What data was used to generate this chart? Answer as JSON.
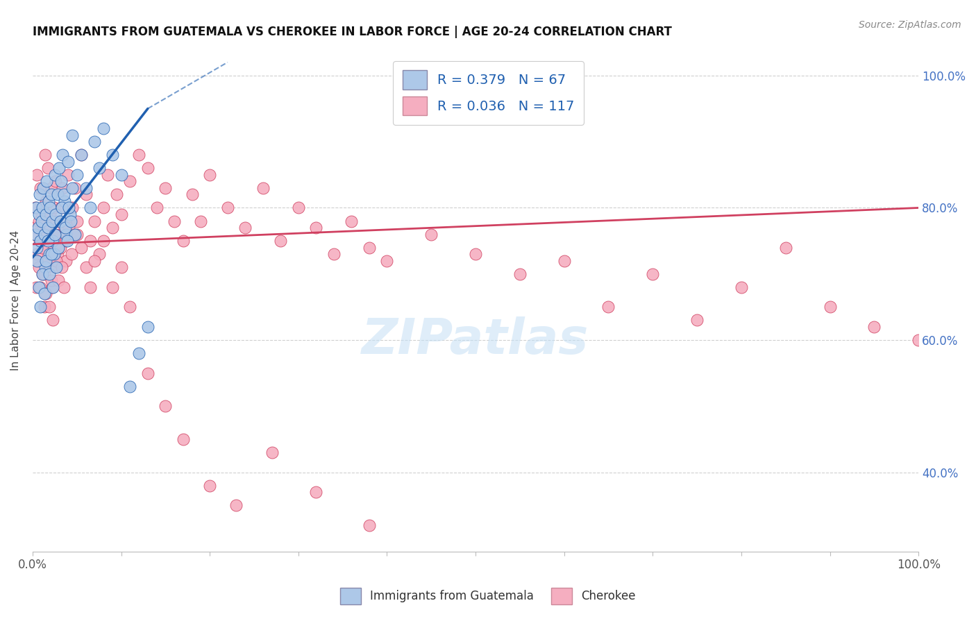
{
  "title": "IMMIGRANTS FROM GUATEMALA VS CHEROKEE IN LABOR FORCE | AGE 20-24 CORRELATION CHART",
  "source": "Source: ZipAtlas.com",
  "ylabel": "In Labor Force | Age 20-24",
  "xlim": [
    0.0,
    1.0
  ],
  "ylim": [
    0.28,
    1.04
  ],
  "blue_R": 0.379,
  "blue_N": 67,
  "pink_R": 0.036,
  "pink_N": 117,
  "blue_color": "#adc8e8",
  "pink_color": "#f5aec0",
  "blue_line_color": "#2060b0",
  "pink_line_color": "#d04060",
  "watermark": "ZIPatlas",
  "legend_blue_label": "Immigrants from Guatemala",
  "legend_pink_label": "Cherokee",
  "right_tick_color": "#4472c4",
  "ytick_positions": [
    0.4,
    0.6,
    0.8,
    1.0
  ],
  "ytick_labels": [
    "40.0%",
    "60.0%",
    "80.0%",
    "100.0%"
  ],
  "blue_scatter_x": [
    0.003,
    0.004,
    0.005,
    0.006,
    0.007,
    0.008,
    0.009,
    0.01,
    0.011,
    0.012,
    0.013,
    0.014,
    0.015,
    0.016,
    0.017,
    0.018,
    0.019,
    0.02,
    0.021,
    0.022,
    0.023,
    0.024,
    0.025,
    0.026,
    0.028,
    0.03,
    0.032,
    0.034,
    0.036,
    0.038,
    0.04,
    0.042,
    0.045,
    0.048,
    0.005,
    0.007,
    0.009,
    0.011,
    0.013,
    0.015,
    0.017,
    0.019,
    0.021,
    0.023,
    0.025,
    0.027,
    0.029,
    0.031,
    0.033,
    0.035,
    0.037,
    0.039,
    0.041,
    0.043,
    0.045,
    0.05,
    0.055,
    0.06,
    0.065,
    0.07,
    0.075,
    0.08,
    0.09,
    0.1,
    0.11,
    0.12,
    0.13
  ],
  "blue_scatter_y": [
    0.76,
    0.8,
    0.74,
    0.77,
    0.79,
    0.82,
    0.75,
    0.78,
    0.8,
    0.83,
    0.76,
    0.71,
    0.79,
    0.84,
    0.77,
    0.81,
    0.73,
    0.8,
    0.82,
    0.78,
    0.75,
    0.73,
    0.85,
    0.79,
    0.82,
    0.86,
    0.84,
    0.88,
    0.81,
    0.76,
    0.87,
    0.79,
    0.91,
    0.76,
    0.72,
    0.68,
    0.65,
    0.7,
    0.67,
    0.72,
    0.75,
    0.7,
    0.73,
    0.68,
    0.76,
    0.71,
    0.74,
    0.78,
    0.8,
    0.82,
    0.77,
    0.75,
    0.8,
    0.78,
    0.83,
    0.85,
    0.88,
    0.83,
    0.8,
    0.9,
    0.86,
    0.92,
    0.88,
    0.85,
    0.53,
    0.58,
    0.62
  ],
  "pink_scatter_x": [
    0.002,
    0.003,
    0.004,
    0.005,
    0.006,
    0.007,
    0.008,
    0.009,
    0.01,
    0.011,
    0.012,
    0.013,
    0.014,
    0.015,
    0.016,
    0.017,
    0.018,
    0.019,
    0.02,
    0.021,
    0.022,
    0.023,
    0.024,
    0.025,
    0.026,
    0.027,
    0.028,
    0.03,
    0.032,
    0.034,
    0.036,
    0.038,
    0.04,
    0.042,
    0.045,
    0.048,
    0.05,
    0.055,
    0.06,
    0.065,
    0.07,
    0.075,
    0.08,
    0.085,
    0.09,
    0.095,
    0.1,
    0.11,
    0.12,
    0.13,
    0.14,
    0.15,
    0.16,
    0.17,
    0.18,
    0.19,
    0.2,
    0.22,
    0.24,
    0.26,
    0.28,
    0.3,
    0.32,
    0.34,
    0.36,
    0.38,
    0.4,
    0.45,
    0.5,
    0.55,
    0.6,
    0.65,
    0.7,
    0.75,
    0.8,
    0.85,
    0.9,
    0.95,
    1.0,
    0.003,
    0.005,
    0.007,
    0.009,
    0.011,
    0.013,
    0.015,
    0.017,
    0.019,
    0.021,
    0.023,
    0.025,
    0.027,
    0.029,
    0.031,
    0.033,
    0.035,
    0.038,
    0.041,
    0.044,
    0.047,
    0.05,
    0.055,
    0.06,
    0.065,
    0.07,
    0.08,
    0.09,
    0.1,
    0.11,
    0.13,
    0.15,
    0.17,
    0.2,
    0.23,
    0.27,
    0.32,
    0.38
  ],
  "pink_scatter_y": [
    0.77,
    0.8,
    0.68,
    0.85,
    0.72,
    0.78,
    0.75,
    0.83,
    0.79,
    0.7,
    0.76,
    0.65,
    0.88,
    0.81,
    0.74,
    0.86,
    0.77,
    0.72,
    0.79,
    0.83,
    0.68,
    0.76,
    0.8,
    0.71,
    0.84,
    0.78,
    0.73,
    0.76,
    0.8,
    0.83,
    0.77,
    0.72,
    0.85,
    0.78,
    0.8,
    0.83,
    0.76,
    0.88,
    0.82,
    0.75,
    0.78,
    0.73,
    0.8,
    0.85,
    0.77,
    0.82,
    0.79,
    0.84,
    0.88,
    0.86,
    0.8,
    0.83,
    0.78,
    0.75,
    0.82,
    0.78,
    0.85,
    0.8,
    0.77,
    0.83,
    0.75,
    0.8,
    0.77,
    0.73,
    0.78,
    0.74,
    0.72,
    0.76,
    0.73,
    0.7,
    0.72,
    0.65,
    0.7,
    0.63,
    0.68,
    0.74,
    0.65,
    0.62,
    0.6,
    0.76,
    0.73,
    0.71,
    0.68,
    0.74,
    0.7,
    0.67,
    0.72,
    0.65,
    0.69,
    0.63,
    0.76,
    0.72,
    0.69,
    0.74,
    0.71,
    0.68,
    0.75,
    0.77,
    0.73,
    0.76,
    0.78,
    0.74,
    0.71,
    0.68,
    0.72,
    0.75,
    0.68,
    0.71,
    0.65,
    0.55,
    0.5,
    0.45,
    0.38,
    0.35,
    0.43,
    0.37,
    0.32
  ]
}
